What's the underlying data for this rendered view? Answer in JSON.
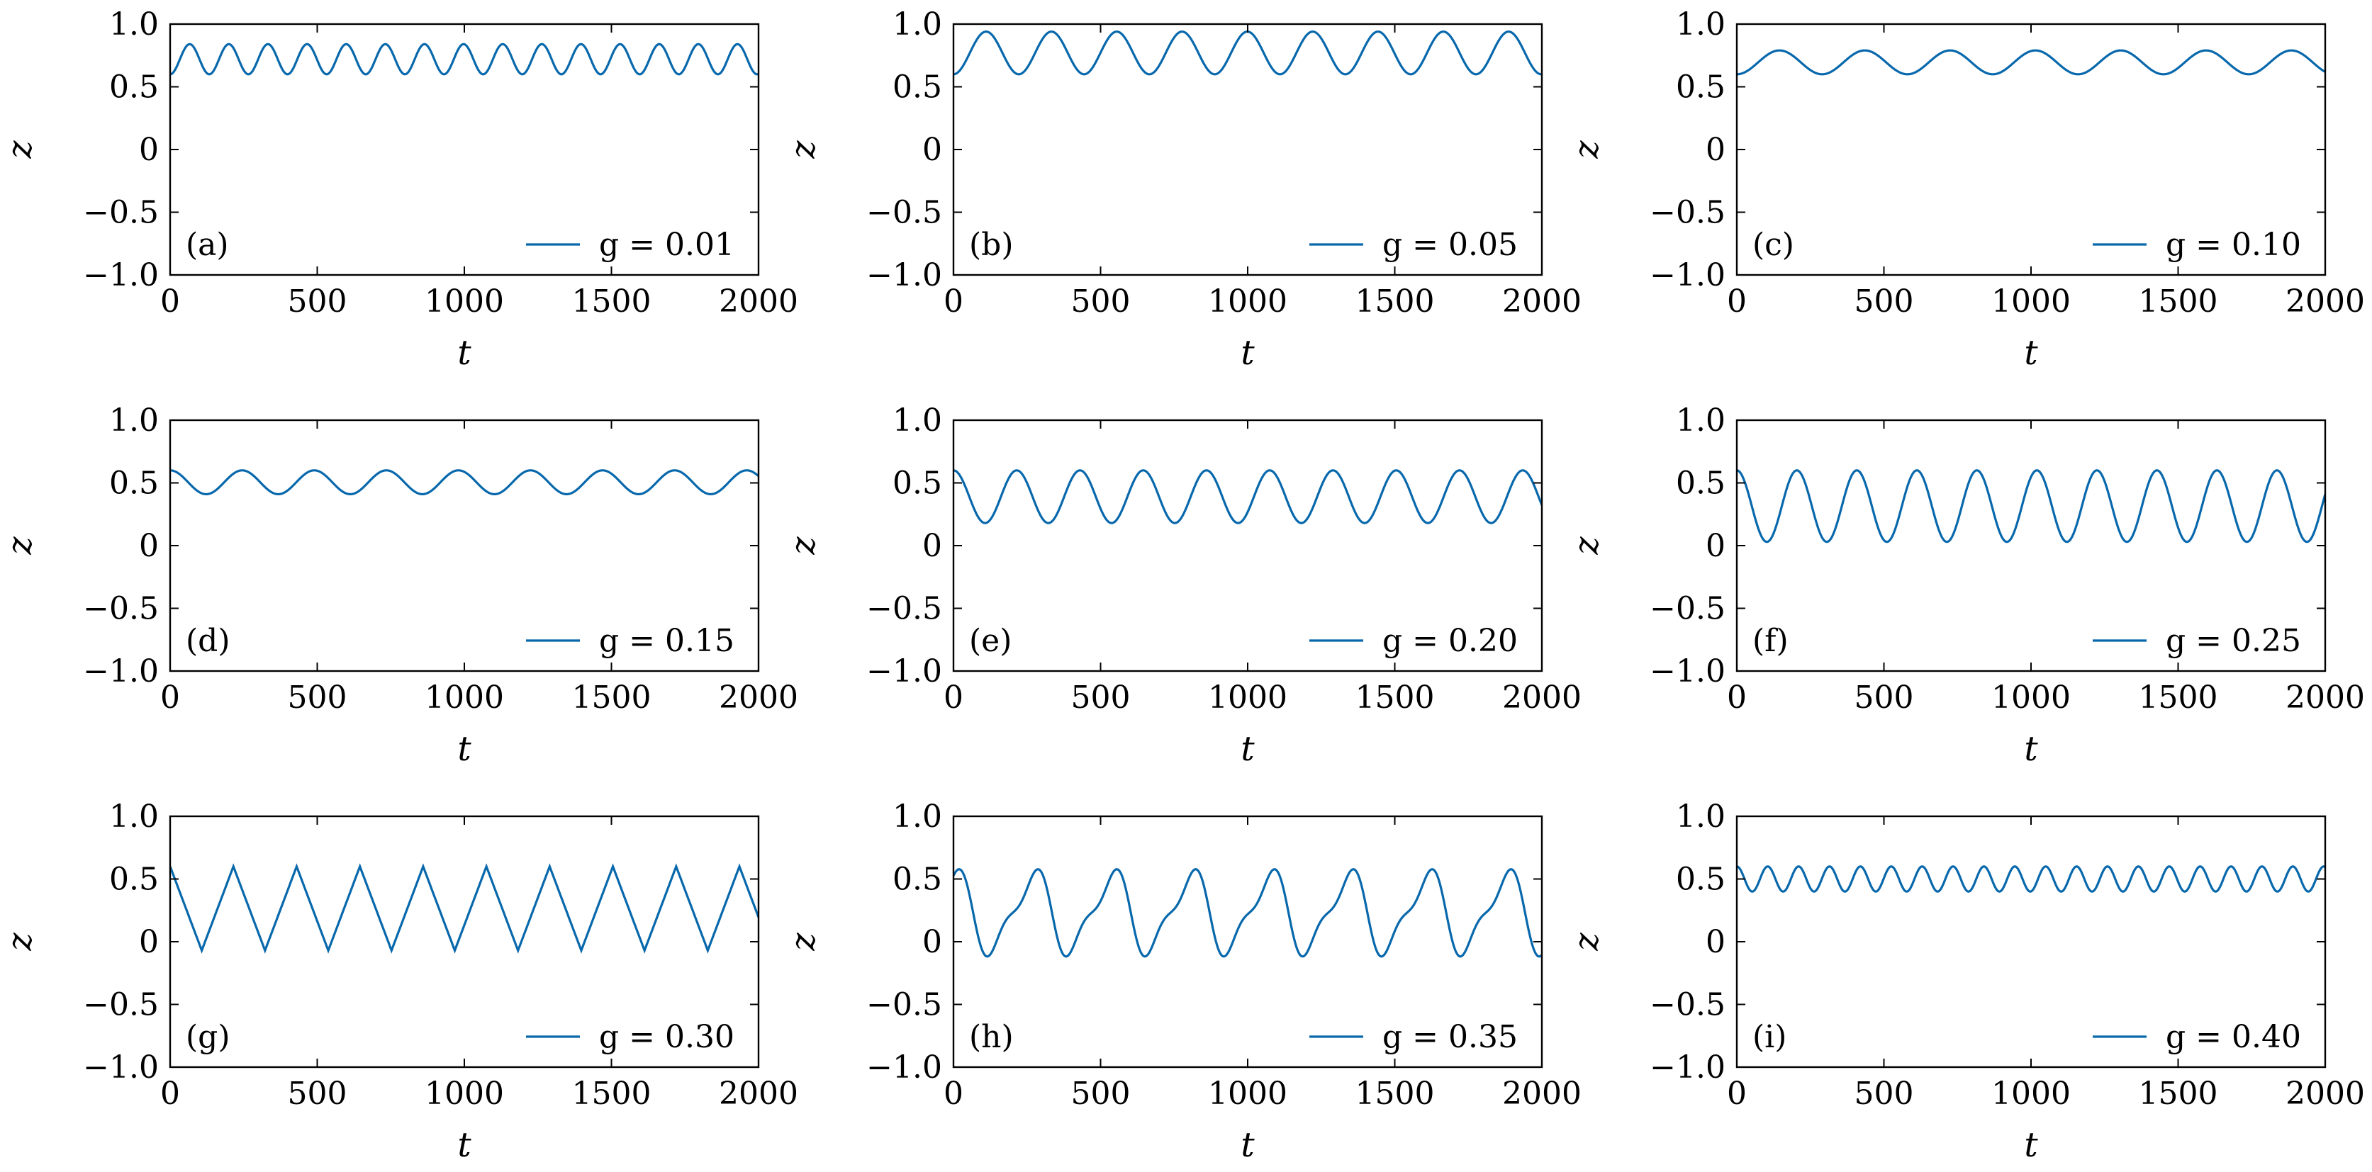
{
  "chart_data": [
    {
      "panel": "(a)",
      "type": "line",
      "legend": "g = 0.01",
      "xlabel": "t",
      "ylabel": "z",
      "xlim": [
        0,
        2000
      ],
      "ylim": [
        -1.0,
        1.0
      ],
      "xticks": [
        "0",
        "500",
        "1000",
        "1500",
        "2000"
      ],
      "yticks": [
        "−1.0",
        "−0.5",
        "0",
        "0.5",
        "1.0"
      ],
      "series": [
        {
          "name": "z(t)",
          "color": "#0868ac",
          "form": "sine",
          "mean": 0.72,
          "amplitude": 0.12,
          "period": 133,
          "start": 0.6
        }
      ]
    },
    {
      "panel": "(b)",
      "type": "line",
      "legend": "g = 0.05",
      "xlabel": "t",
      "ylabel": "z",
      "xlim": [
        0,
        2000
      ],
      "ylim": [
        -1.0,
        1.0
      ],
      "xticks": [
        "0",
        "500",
        "1000",
        "1500",
        "2000"
      ],
      "yticks": [
        "−1.0",
        "−0.5",
        "0",
        "0.5",
        "1.0"
      ],
      "series": [
        {
          "name": "z(t)",
          "color": "#0868ac",
          "form": "sine",
          "mean": 0.77,
          "amplitude": 0.17,
          "period": 222,
          "start": 0.6
        }
      ]
    },
    {
      "panel": "(c)",
      "type": "line",
      "legend": "g = 0.10",
      "xlabel": "t",
      "ylabel": "z",
      "xlim": [
        0,
        2000
      ],
      "ylim": [
        -1.0,
        1.0
      ],
      "xticks": [
        "0",
        "500",
        "1000",
        "1500",
        "2000"
      ],
      "yticks": [
        "−1.0",
        "−0.5",
        "0",
        "0.5",
        "1.0"
      ],
      "series": [
        {
          "name": "z(t)",
          "color": "#0868ac",
          "form": "sine",
          "mean": 0.695,
          "amplitude": 0.095,
          "period": 290,
          "start": 0.6
        }
      ]
    },
    {
      "panel": "(d)",
      "type": "line",
      "legend": "g = 0.15",
      "xlabel": "t",
      "ylabel": "z",
      "xlim": [
        0,
        2000
      ],
      "ylim": [
        -1.0,
        1.0
      ],
      "xticks": [
        "0",
        "500",
        "1000",
        "1500",
        "2000"
      ],
      "yticks": [
        "−1.0",
        "−0.5",
        "0",
        "0.5",
        "1.0"
      ],
      "series": [
        {
          "name": "z(t)",
          "color": "#0868ac",
          "form": "sine",
          "mean": 0.505,
          "amplitude": 0.095,
          "period": 245,
          "start": 0.6
        }
      ]
    },
    {
      "panel": "(e)",
      "type": "line",
      "legend": "g = 0.20",
      "xlabel": "t",
      "ylabel": "z",
      "xlim": [
        0,
        2000
      ],
      "ylim": [
        -1.0,
        1.0
      ],
      "xticks": [
        "0",
        "500",
        "1000",
        "1500",
        "2000"
      ],
      "yticks": [
        "−1.0",
        "−0.5",
        "0",
        "0.5",
        "1.0"
      ],
      "series": [
        {
          "name": "z(t)",
          "color": "#0868ac",
          "form": "sine",
          "mean": 0.39,
          "amplitude": 0.21,
          "period": 215,
          "start": 0.6
        }
      ]
    },
    {
      "panel": "(f)",
      "type": "line",
      "legend": "g = 0.25",
      "xlabel": "t",
      "ylabel": "z",
      "xlim": [
        0,
        2000
      ],
      "ylim": [
        -1.0,
        1.0
      ],
      "xticks": [
        "0",
        "500",
        "1000",
        "1500",
        "2000"
      ],
      "yticks": [
        "−1.0",
        "−0.5",
        "0",
        "0.5",
        "1.0"
      ],
      "series": [
        {
          "name": "z(t)",
          "color": "#0868ac",
          "form": "sine",
          "mean": 0.315,
          "amplitude": 0.285,
          "period": 204,
          "start": 0.6
        }
      ]
    },
    {
      "panel": "(g)",
      "type": "line",
      "legend": "g = 0.30",
      "xlabel": "t",
      "ylabel": "z",
      "xlim": [
        0,
        2000
      ],
      "ylim": [
        -1.0,
        1.0
      ],
      "xticks": [
        "0",
        "500",
        "1000",
        "1500",
        "2000"
      ],
      "yticks": [
        "−1.0",
        "−0.5",
        "0",
        "0.5",
        "1.0"
      ],
      "series": [
        {
          "name": "z(t)",
          "color": "#0868ac",
          "form": "triangle",
          "mean": 0.265,
          "amplitude": 0.335,
          "period": 215,
          "start": 0.6
        }
      ]
    },
    {
      "panel": "(h)",
      "type": "line",
      "legend": "g = 0.35",
      "xlabel": "t",
      "ylabel": "z",
      "xlim": [
        0,
        2000
      ],
      "ylim": [
        -1.0,
        1.0
      ],
      "xticks": [
        "0",
        "500",
        "1000",
        "1500",
        "2000"
      ],
      "yticks": [
        "−1.0",
        "−0.5",
        "0",
        "0.5",
        "1.0"
      ],
      "series": [
        {
          "name": "z(t)",
          "color": "#0868ac",
          "form": "shoulder",
          "mean": 0.23,
          "amplitude": 0.37,
          "period": 268,
          "start": 0.6
        }
      ]
    },
    {
      "panel": "(i)",
      "type": "line",
      "legend": "g = 0.40",
      "xlabel": "t",
      "ylabel": "z",
      "xlim": [
        0,
        2000
      ],
      "ylim": [
        -1.0,
        1.0
      ],
      "xticks": [
        "0",
        "500",
        "1000",
        "1500",
        "2000"
      ],
      "yticks": [
        "−1.0",
        "−0.5",
        "0",
        "0.5",
        "1.0"
      ],
      "series": [
        {
          "name": "z(t)",
          "color": "#0868ac",
          "form": "sine",
          "mean": 0.5,
          "amplitude": 0.1,
          "period": 105,
          "start": 0.6
        }
      ]
    }
  ]
}
